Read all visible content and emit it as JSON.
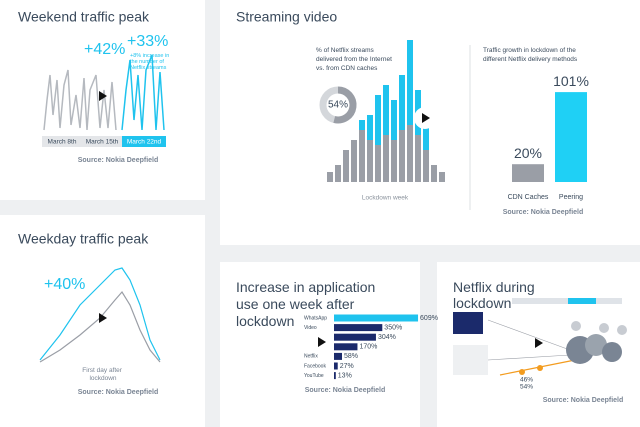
{
  "weekend": {
    "title": "Weekend traffic peak",
    "left_pct": "+42%",
    "right_pct": "+33%",
    "note_lines": [
      "+8% increase in",
      "the number of",
      "Netflix streams"
    ],
    "dates": [
      "March 8th",
      "March 15th",
      "March 22nd"
    ],
    "source": "Source: Nokia Deepfield"
  },
  "streaming": {
    "title": "Streaming video",
    "donut_caption_lines": [
      "% of Netflix streams",
      "delivered from the Internet",
      "vs. from CDN caches"
    ],
    "donut": {
      "value": 54,
      "label": "54%"
    },
    "histogram_caption": "Lockdown week",
    "growth_caption_lines": [
      "Traffic growth in lockdown of the",
      "different Netflix delivery methods"
    ],
    "growth": {
      "categories": [
        "CDN Caches",
        "Peering"
      ],
      "values": [
        20,
        101
      ],
      "value_labels": [
        "20%",
        "101%"
      ],
      "colors": [
        "#9a9ea6",
        "#1fd0f5"
      ]
    },
    "source": "Source: Nokia Deepfield"
  },
  "weekday": {
    "title": "Weekday traffic peak",
    "pct": "+40%",
    "caption_lines": [
      "First day after",
      "lockdown"
    ],
    "source": "Source: Nokia Deepfield"
  },
  "apps": {
    "title_lines": [
      "Increase in application",
      "use one week after",
      "lockdown"
    ],
    "categories": [
      "WhatsApp",
      "Video",
      null,
      null,
      "Netflix",
      "Facebook",
      "YouTube"
    ],
    "values": [
      609,
      350,
      304,
      170,
      58,
      27,
      13
    ],
    "value_labels": [
      "609%",
      "350%",
      "304%",
      "170%",
      "58%",
      "27%",
      "13%"
    ],
    "colors": [
      "#1fc3ee",
      "#1b2a6b",
      "#1b2a6b",
      "#1b2a6b",
      "#1b2a6b",
      "#1b2a6b",
      "#1b2a6b"
    ],
    "source": "Source: Nokia Deepfield"
  },
  "netflix": {
    "title_lines": [
      "Netflix during",
      "lockdown"
    ],
    "up": "46%",
    "down": "54%",
    "source": "Source: Nokia Deepfield"
  }
}
